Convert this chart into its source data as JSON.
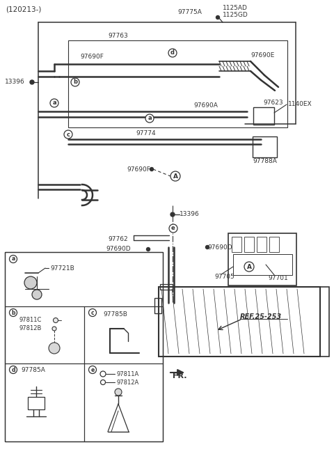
{
  "title": "(120213-)",
  "bg_color": "#ffffff",
  "line_color": "#333333",
  "text_color": "#333333",
  "fig_width": 4.8,
  "fig_height": 6.52,
  "dpi": 100,
  "labels": {
    "title": "(120213-)",
    "97775A": "97775A",
    "1125AD": "1125AD",
    "1125GD": "1125GD",
    "97763": "97763",
    "97690F": "97690F",
    "97690E": "97690E",
    "97690A": "97690A",
    "97690D": "97690D",
    "13396": "13396",
    "97774": "97774",
    "97623": "97623",
    "1140EX": "1140EX",
    "97788A": "97788A",
    "97762": "97762",
    "97705": "97705",
    "97701": "97701",
    "97721B": "97721B",
    "97811C": "97811C",
    "97812B": "97812B",
    "97785B": "97785B",
    "97785A": "97785A",
    "97811A": "97811A",
    "97812A": "97812A",
    "ref": "REF.25-253",
    "fr": "FR."
  }
}
